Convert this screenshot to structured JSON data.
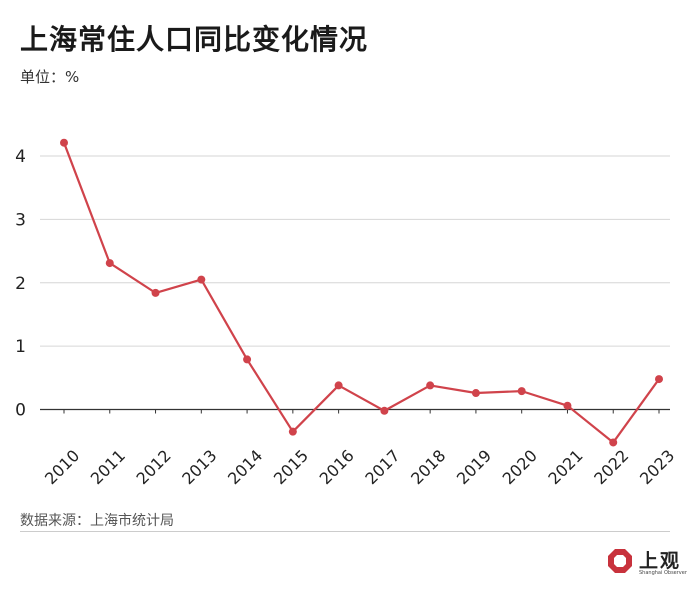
{
  "header": {
    "title": "上海常住人口同比变化情况",
    "unit": "单位：%"
  },
  "footer": {
    "source": "数据来源：上海市统计局"
  },
  "brand": {
    "name": "上观",
    "subtitle": "Shanghai Observer",
    "color": "#c8323c"
  },
  "chart_data": {
    "type": "line",
    "title": "上海常住人口同比变化情况",
    "ylabel": "单位：%",
    "xlabel": "",
    "ylim": [
      -0.6,
      4.5
    ],
    "yticks": [
      0,
      1,
      2,
      3,
      4
    ],
    "grid": true,
    "line_color": "#d0434b",
    "categories": [
      "2010",
      "2011",
      "2012",
      "2013",
      "2014",
      "2015",
      "2016",
      "2017",
      "2018",
      "2019",
      "2020",
      "2021",
      "2022",
      "2023"
    ],
    "series": [
      {
        "name": "同比变化",
        "values": [
          4.21,
          2.31,
          1.84,
          2.05,
          0.79,
          -0.35,
          0.38,
          -0.02,
          0.38,
          0.26,
          0.29,
          0.06,
          -0.52,
          0.48
        ]
      }
    ]
  }
}
